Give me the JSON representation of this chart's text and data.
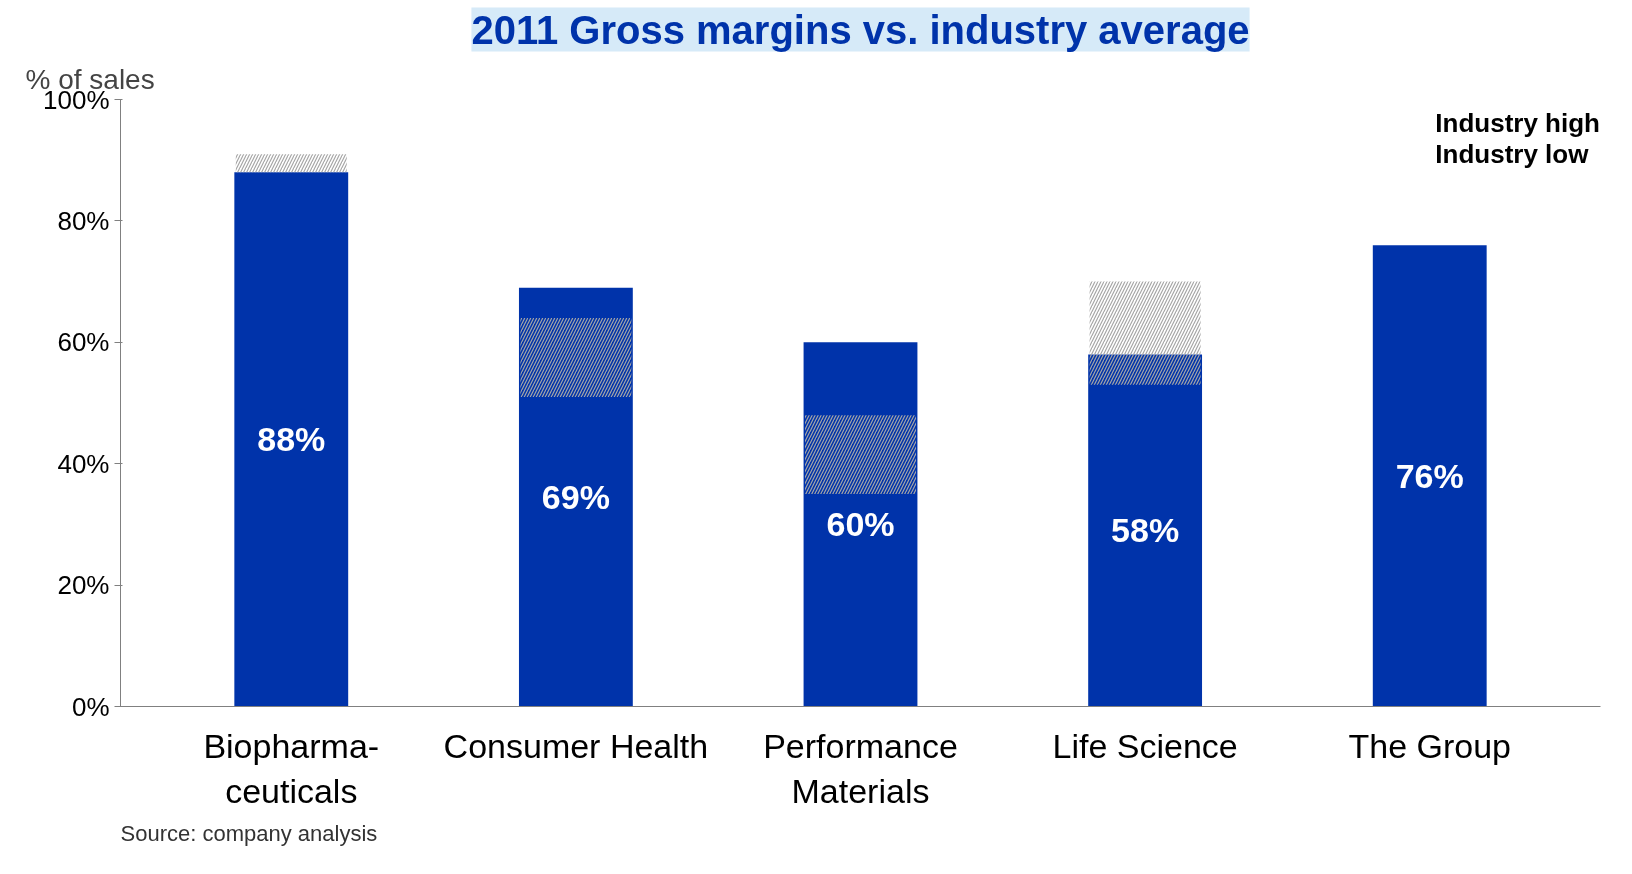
{
  "chart_data": {
    "type": "bar",
    "title": "2011 Gross margins vs. industry average",
    "ylabel": "% of sales",
    "categories": [
      "Biopharma-\nceuticals",
      "Consumer Health",
      "Performance\nMaterials",
      "Life Science",
      "The Group"
    ],
    "series": [
      {
        "color": "#0033aa",
        "values": [
          88,
          69,
          60,
          58,
          76
        ],
        "value_labels": [
          "88%",
          "69%",
          "60%",
          "58%",
          "76%"
        ]
      },
      {
        "name": "Industry high\nIndustry low",
        "color": "#a6a6a6",
        "base": [
          88,
          51,
          35,
          53,
          null
        ],
        "values": [
          3,
          13,
          13,
          17,
          null
        ]
      }
    ],
    "ylim": [
      0,
      100
    ],
    "yticks": [
      {
        "value": 0,
        "label": "0%"
      },
      {
        "value": 20,
        "label": "20%"
      },
      {
        "value": 40,
        "label": "40%"
      },
      {
        "value": 60,
        "label": "60%"
      },
      {
        "value": 80,
        "label": "80%"
      },
      {
        "value": 100,
        "label": "100%"
      }
    ],
    "grid": false,
    "legend": "top right",
    "annotations": [
      "Source: company analysis"
    ]
  }
}
